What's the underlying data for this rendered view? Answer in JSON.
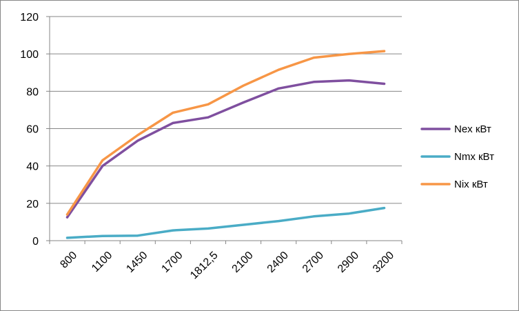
{
  "chart_data": {
    "type": "line",
    "categories": [
      "800",
      "1100",
      "1450",
      "1700",
      "1812,5",
      "2100",
      "2400",
      "2700",
      "2900",
      "3200"
    ],
    "series": [
      {
        "name": "Nex кВт",
        "color": "#7f4f9f",
        "values": [
          12.5,
          40,
          53.5,
          63,
          66,
          74,
          81.5,
          85,
          85.8,
          84
        ]
      },
      {
        "name": "Nmx кВт",
        "color": "#4aacc6",
        "values": [
          1.5,
          2.5,
          2.7,
          5.5,
          6.5,
          8.5,
          10.5,
          13,
          14.5,
          17.5
        ]
      },
      {
        "name": "Nix кВт",
        "color": "#f79646",
        "values": [
          14,
          43,
          56.5,
          68.5,
          73,
          83,
          91.5,
          98,
          100,
          101.5
        ]
      }
    ],
    "ylim": [
      0,
      120
    ],
    "yticks": [
      "0",
      "20",
      "40",
      "60",
      "80",
      "100",
      "120"
    ],
    "grid": "horizontal",
    "legend_position": "right",
    "xlabel": "",
    "ylabel": "",
    "title": ""
  }
}
